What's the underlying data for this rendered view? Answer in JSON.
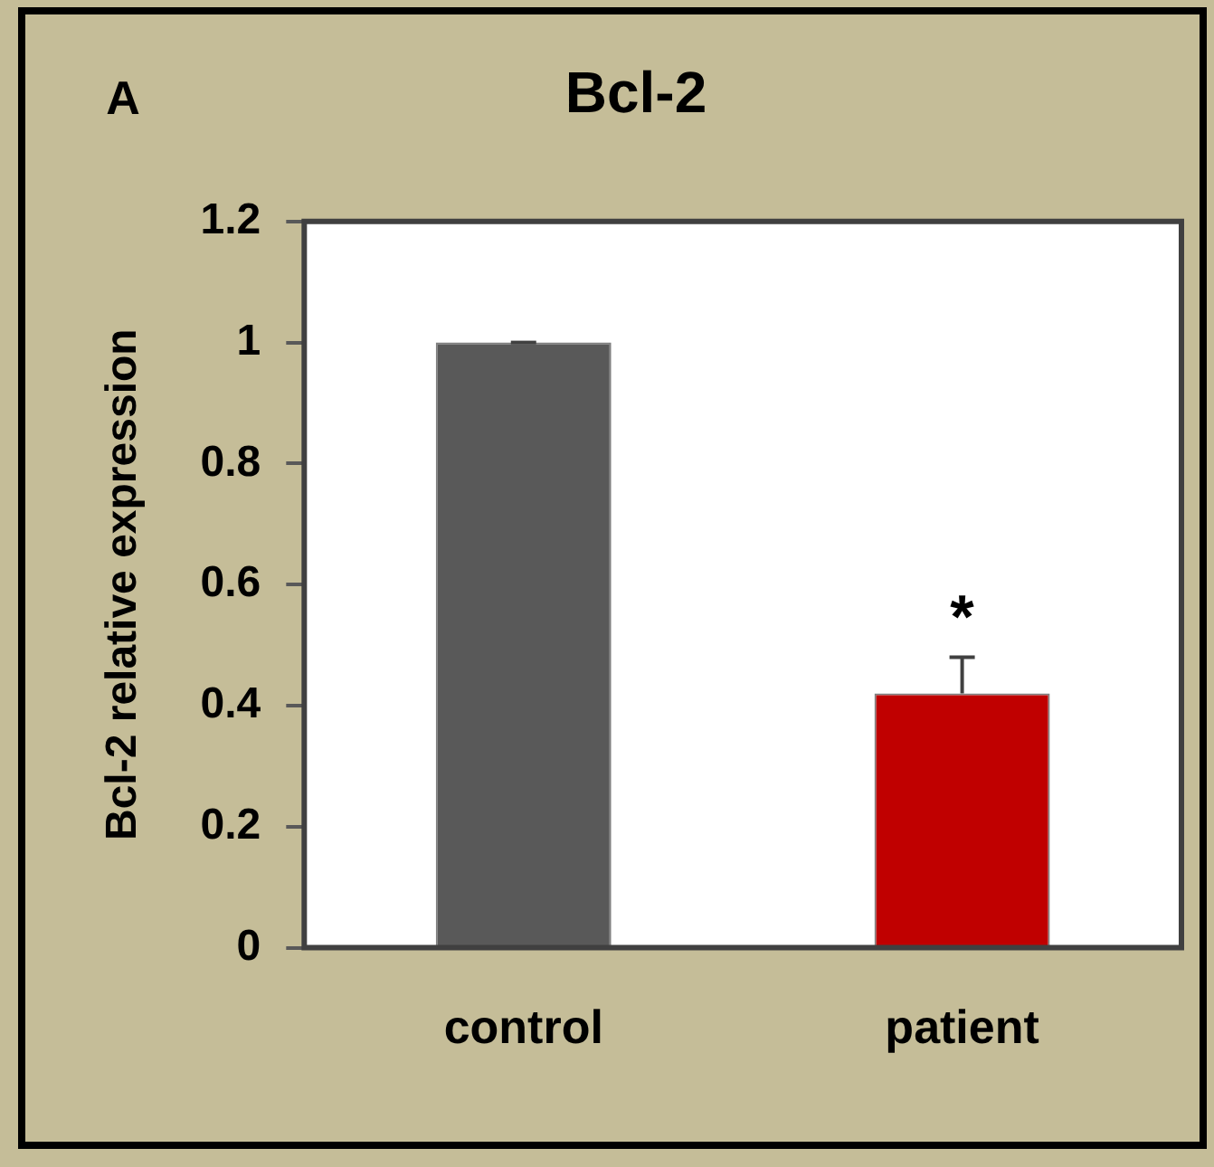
{
  "chart_data": {
    "type": "bar",
    "title": "Bcl-2",
    "ylabel": "Bcl-2 relative expression",
    "categories": [
      "control",
      "patient"
    ],
    "values": [
      1.0,
      0.42
    ],
    "colors": [
      "#595959",
      "#c00000"
    ],
    "errors": [
      0,
      0.06
    ],
    "ylim": [
      0,
      1.2
    ],
    "yticks": [
      0,
      0.2,
      0.4,
      0.6,
      0.8,
      1,
      1.2
    ],
    "grid": false,
    "legend": false,
    "annotations": [
      "A",
      "*"
    ]
  }
}
